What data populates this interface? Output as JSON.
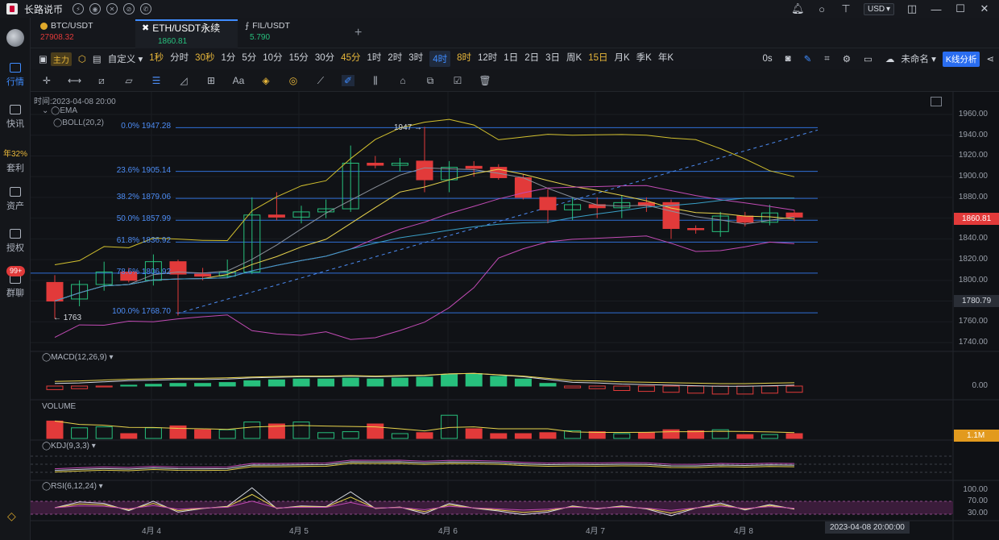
{
  "app": {
    "title": "长路说币"
  },
  "titlebar": {
    "currency": "USD"
  },
  "sidebar": {
    "items": [
      {
        "label": "行情",
        "active": true
      },
      {
        "label": "快讯"
      },
      {
        "label": "套利",
        "top_text": "年32%"
      },
      {
        "label": "资产"
      },
      {
        "label": "授权"
      },
      {
        "label": "群聊"
      }
    ],
    "badge": "99+"
  },
  "tabs": [
    {
      "name": "BTC/USDT",
      "price": "27908.32",
      "price_color": "#e23a3a"
    },
    {
      "name": "ETH/USDT永续",
      "price": "1860.81",
      "price_color": "#27c07d",
      "active": true
    },
    {
      "name": "FIL/USDT",
      "price": "5.790",
      "price_color": "#27c07d"
    }
  ],
  "periods": {
    "main_label": "主力",
    "custom": "自定义",
    "items": [
      {
        "label": "1秒",
        "color": "yellow"
      },
      {
        "label": "分时"
      },
      {
        "label": "30秒",
        "color": "yellow"
      },
      {
        "label": "1分"
      },
      {
        "label": "5分"
      },
      {
        "label": "10分"
      },
      {
        "label": "15分"
      },
      {
        "label": "30分"
      },
      {
        "label": "45分",
        "color": "yellow"
      },
      {
        "label": "1时"
      },
      {
        "label": "2时"
      },
      {
        "label": "3时"
      },
      {
        "label": "4时",
        "active": true
      },
      {
        "label": "8时",
        "color": "yellow"
      },
      {
        "label": "12时"
      },
      {
        "label": "1日"
      },
      {
        "label": "2日"
      },
      {
        "label": "3日"
      },
      {
        "label": "周K"
      },
      {
        "label": "15日",
        "color": "yellow"
      },
      {
        "label": "月K"
      },
      {
        "label": "季K"
      },
      {
        "label": "年K"
      }
    ],
    "right": {
      "seconds": "0s",
      "unnamed": "未命名",
      "kline": "K线分析"
    }
  },
  "chart": {
    "time_label": "时间:2023-04-08 20:00",
    "ema_label": "EMA",
    "boll_label": "BOLL(20,2)",
    "high_label": "1947",
    "low_label": "1763",
    "current_price": "1860.81",
    "ref_price": "1780.79",
    "cursor_time": "2023-04-08 20:00:00",
    "fib": [
      {
        "label": "0.0% 1947.28",
        "price": 1947.28
      },
      {
        "label": "23.6% 1905.14",
        "price": 1905.14
      },
      {
        "label": "38.2% 1879.06",
        "price": 1879.06
      },
      {
        "label": "50.0% 1857.99",
        "price": 1857.99
      },
      {
        "label": "61.8% 1836.92",
        "price": 1836.92
      },
      {
        "label": "78.6% 1806.92",
        "price": 1806.92
      },
      {
        "label": "100.0% 1768.70",
        "price": 1768.7
      }
    ],
    "y_axis": [
      "1960.00",
      "1940.00",
      "1920.00",
      "1900.00",
      "1880.00",
      "1860.00",
      "1840.00",
      "1820.00",
      "1800.00",
      "1780.00",
      "1760.00",
      "1740.00"
    ],
    "dates": [
      "4月 4",
      "4月 5",
      "4月 6",
      "4月 7",
      "4月 8"
    ],
    "macd_label": "MACD(12,26,9)",
    "macd_axis": "0.00",
    "volume_label": "VOLUME",
    "volume_value": "1.1M",
    "kdj_label": "KDJ(9,3,3)",
    "rsi_label": "RSI(6,12,24)",
    "rsi_axis": [
      "100.00",
      "70.00",
      "30.00"
    ]
  },
  "chart_data": {
    "type": "candlestick",
    "interval": "4h",
    "ylim": [
      1735,
      1965
    ],
    "candles": [
      {
        "o": 1798,
        "h": 1805,
        "l": 1763,
        "c": 1780
      },
      {
        "o": 1782,
        "h": 1800,
        "l": 1775,
        "c": 1796
      },
      {
        "o": 1796,
        "h": 1818,
        "l": 1790,
        "c": 1808
      },
      {
        "o": 1808,
        "h": 1812,
        "l": 1798,
        "c": 1800
      },
      {
        "o": 1800,
        "h": 1825,
        "l": 1795,
        "c": 1818
      },
      {
        "o": 1818,
        "h": 1820,
        "l": 1766,
        "c": 1806
      },
      {
        "o": 1806,
        "h": 1812,
        "l": 1800,
        "c": 1804
      },
      {
        "o": 1804,
        "h": 1820,
        "l": 1802,
        "c": 1808
      },
      {
        "o": 1808,
        "h": 1880,
        "l": 1806,
        "c": 1863
      },
      {
        "o": 1863,
        "h": 1885,
        "l": 1858,
        "c": 1861
      },
      {
        "o": 1861,
        "h": 1872,
        "l": 1855,
        "c": 1866
      },
      {
        "o": 1866,
        "h": 1878,
        "l": 1860,
        "c": 1869
      },
      {
        "o": 1869,
        "h": 1930,
        "l": 1866,
        "c": 1913
      },
      {
        "o": 1913,
        "h": 1920,
        "l": 1908,
        "c": 1911
      },
      {
        "o": 1911,
        "h": 1918,
        "l": 1905,
        "c": 1913
      },
      {
        "o": 1915,
        "h": 1948,
        "l": 1885,
        "c": 1897
      },
      {
        "o": 1897,
        "h": 1915,
        "l": 1885,
        "c": 1909
      },
      {
        "o": 1910,
        "h": 1915,
        "l": 1900,
        "c": 1908
      },
      {
        "o": 1909,
        "h": 1912,
        "l": 1897,
        "c": 1899
      },
      {
        "o": 1899,
        "h": 1902,
        "l": 1878,
        "c": 1880
      },
      {
        "o": 1880,
        "h": 1888,
        "l": 1855,
        "c": 1868
      },
      {
        "o": 1868,
        "h": 1880,
        "l": 1858,
        "c": 1873
      },
      {
        "o": 1873,
        "h": 1880,
        "l": 1860,
        "c": 1870
      },
      {
        "o": 1870,
        "h": 1882,
        "l": 1860,
        "c": 1875
      },
      {
        "o": 1875,
        "h": 1880,
        "l": 1866,
        "c": 1872
      },
      {
        "o": 1875,
        "h": 1878,
        "l": 1840,
        "c": 1850
      },
      {
        "o": 1850,
        "h": 1853,
        "l": 1845,
        "c": 1849
      },
      {
        "o": 1847,
        "h": 1866,
        "l": 1842,
        "c": 1862
      },
      {
        "o": 1862,
        "h": 1866,
        "l": 1852,
        "c": 1856
      },
      {
        "o": 1856,
        "h": 1873,
        "l": 1853,
        "c": 1865
      },
      {
        "o": 1865,
        "h": 1868,
        "l": 1857,
        "c": 1861
      }
    ],
    "volume": [
      0.9,
      0.55,
      0.6,
      0.25,
      0.55,
      0.65,
      0.45,
      0.45,
      0.85,
      0.75,
      0.85,
      0.3,
      0.35,
      0.75,
      0.25,
      0.3,
      1.2,
      0.5,
      0.25,
      0.25,
      0.3,
      0.4,
      0.35,
      0.25,
      0.3,
      0.45,
      0.4,
      0.45,
      0.2,
      0.2,
      0.25
    ],
    "macd_hist": [
      -4,
      -3,
      -1,
      1,
      2,
      3,
      3,
      4,
      6,
      7,
      8,
      8,
      9,
      8,
      9,
      10,
      13,
      14,
      11,
      8,
      3,
      -2,
      -3,
      -5,
      -6,
      -7,
      -8,
      -9,
      -9,
      -8,
      -7
    ]
  }
}
